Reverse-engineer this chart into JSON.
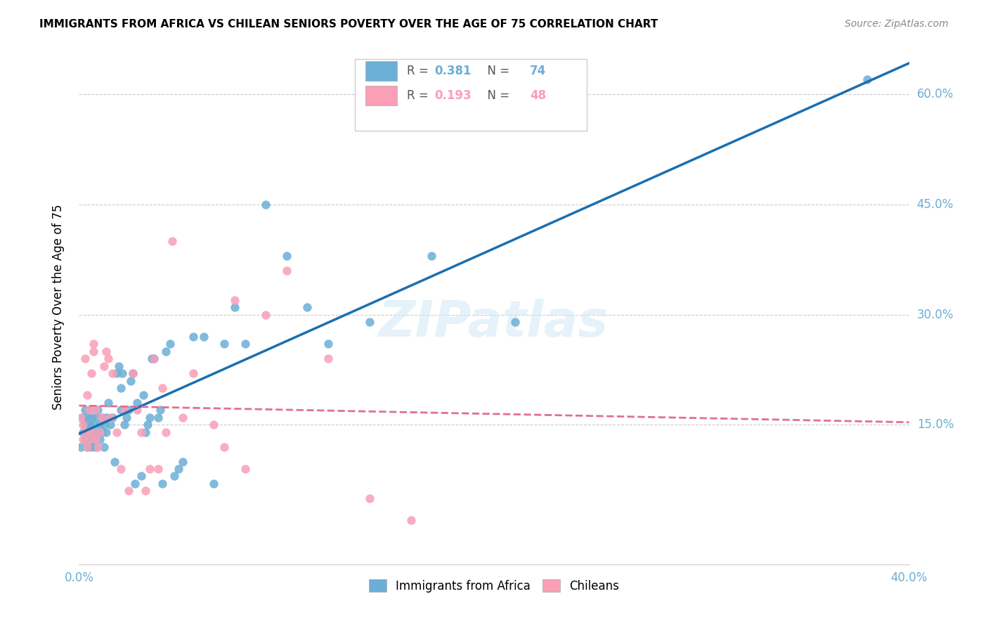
{
  "title": "IMMIGRANTS FROM AFRICA VS CHILEAN SENIORS POVERTY OVER THE AGE OF 75 CORRELATION CHART",
  "source": "Source: ZipAtlas.com",
  "ylabel": "Seniors Poverty Over the Age of 75",
  "ytick_values": [
    0.0,
    0.15,
    0.3,
    0.45,
    0.6
  ],
  "ytick_labels": [
    "0.0%",
    "15.0%",
    "30.0%",
    "45.0%",
    "60.0%"
  ],
  "xlim": [
    0,
    0.4
  ],
  "ylim": [
    -0.04,
    0.66
  ],
  "color_blue": "#6baed6",
  "color_pink": "#fa9fb5",
  "line_blue": "#1a6faf",
  "line_pink": "#e07090",
  "watermark": "ZIPatlas",
  "africa_x": [
    0.001,
    0.002,
    0.002,
    0.003,
    0.003,
    0.003,
    0.004,
    0.004,
    0.004,
    0.005,
    0.005,
    0.005,
    0.006,
    0.006,
    0.006,
    0.007,
    0.007,
    0.008,
    0.008,
    0.009,
    0.009,
    0.01,
    0.01,
    0.011,
    0.011,
    0.012,
    0.012,
    0.013,
    0.013,
    0.014,
    0.015,
    0.016,
    0.017,
    0.018,
    0.019,
    0.02,
    0.02,
    0.021,
    0.022,
    0.023,
    0.024,
    0.025,
    0.026,
    0.027,
    0.028,
    0.03,
    0.031,
    0.032,
    0.033,
    0.034,
    0.035,
    0.036,
    0.038,
    0.039,
    0.04,
    0.042,
    0.044,
    0.046,
    0.048,
    0.05,
    0.055,
    0.06,
    0.065,
    0.07,
    0.075,
    0.08,
    0.09,
    0.1,
    0.11,
    0.12,
    0.14,
    0.17,
    0.21,
    0.38
  ],
  "africa_y": [
    0.12,
    0.14,
    0.16,
    0.13,
    0.15,
    0.17,
    0.12,
    0.14,
    0.16,
    0.13,
    0.15,
    0.17,
    0.12,
    0.14,
    0.16,
    0.13,
    0.15,
    0.12,
    0.16,
    0.14,
    0.17,
    0.13,
    0.15,
    0.14,
    0.16,
    0.12,
    0.15,
    0.14,
    0.16,
    0.18,
    0.15,
    0.16,
    0.1,
    0.22,
    0.23,
    0.17,
    0.2,
    0.22,
    0.15,
    0.16,
    0.17,
    0.21,
    0.22,
    0.07,
    0.18,
    0.08,
    0.19,
    0.14,
    0.15,
    0.16,
    0.24,
    0.24,
    0.16,
    0.17,
    0.07,
    0.25,
    0.26,
    0.08,
    0.09,
    0.1,
    0.27,
    0.27,
    0.07,
    0.26,
    0.31,
    0.26,
    0.45,
    0.38,
    0.31,
    0.26,
    0.29,
    0.38,
    0.29,
    0.62
  ],
  "chilean_x": [
    0.001,
    0.002,
    0.002,
    0.003,
    0.003,
    0.004,
    0.004,
    0.005,
    0.005,
    0.006,
    0.006,
    0.007,
    0.007,
    0.008,
    0.008,
    0.009,
    0.01,
    0.011,
    0.012,
    0.013,
    0.014,
    0.015,
    0.016,
    0.018,
    0.02,
    0.022,
    0.024,
    0.026,
    0.028,
    0.03,
    0.032,
    0.034,
    0.036,
    0.038,
    0.04,
    0.042,
    0.045,
    0.05,
    0.055,
    0.065,
    0.07,
    0.075,
    0.08,
    0.09,
    0.1,
    0.12,
    0.14,
    0.16
  ],
  "chilean_y": [
    0.16,
    0.13,
    0.15,
    0.14,
    0.24,
    0.12,
    0.19,
    0.13,
    0.17,
    0.14,
    0.22,
    0.25,
    0.26,
    0.13,
    0.17,
    0.12,
    0.14,
    0.16,
    0.23,
    0.25,
    0.24,
    0.16,
    0.22,
    0.14,
    0.09,
    0.17,
    0.06,
    0.22,
    0.17,
    0.14,
    0.06,
    0.09,
    0.24,
    0.09,
    0.2,
    0.14,
    0.4,
    0.16,
    0.22,
    0.15,
    0.12,
    0.32,
    0.09,
    0.3,
    0.36,
    0.24,
    0.05,
    0.02
  ]
}
